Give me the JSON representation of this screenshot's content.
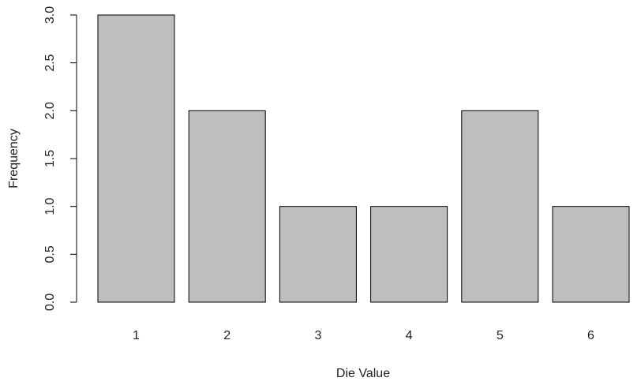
{
  "chart_data": {
    "type": "bar",
    "categories": [
      "1",
      "2",
      "3",
      "4",
      "5",
      "6"
    ],
    "values": [
      3,
      2,
      1,
      1,
      2,
      1
    ],
    "title": "",
    "xlabel": "Die Value",
    "ylabel": "Frequency",
    "ylim": [
      0,
      3
    ],
    "yticks": [
      "0.0",
      "0.5",
      "1.0",
      "1.5",
      "2.0",
      "2.5",
      "3.0"
    ],
    "grid": false,
    "bar_color": "#bebebe",
    "bar_border_color": "#000000"
  }
}
